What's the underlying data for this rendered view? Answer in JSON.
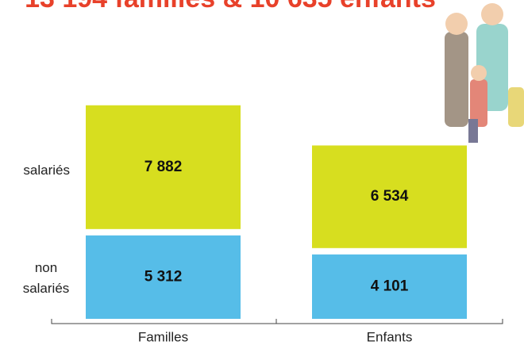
{
  "chart_data": {
    "type": "stacked-bar",
    "title": "13 194 familles & 10 635 enfants",
    "categories": [
      "Familles",
      "Enfants"
    ],
    "series": [
      {
        "name": "non salariés",
        "color": "#56bde8",
        "values": [
          5312,
          4101
        ],
        "value_labels": [
          "5 312",
          "4 101"
        ]
      },
      {
        "name": "salariés",
        "color": "#d7de1f",
        "values": [
          7882,
          6534
        ],
        "value_labels": [
          "7 882",
          "6 534"
        ]
      }
    ]
  }
}
